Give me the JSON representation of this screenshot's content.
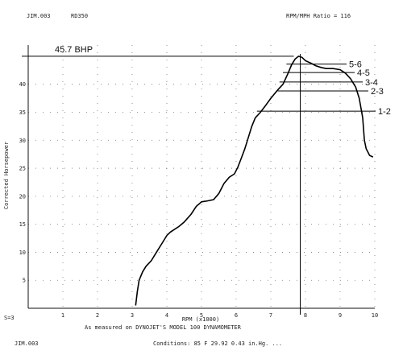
{
  "header": {
    "left_code": "JIM.003",
    "model": "RD350",
    "right_title": "RPM/MPH Ratio = 116"
  },
  "footer": {
    "scale": "S=3",
    "measured": "As measured on DYNOJET'S MODEL 100 DYNAMOMETER",
    "file": "JIM.003",
    "conditions": "Conditions: 85 F  29.92 0.43 in.Hg.  ..."
  },
  "chart_data": {
    "type": "line",
    "xlabel": "RPM (x1000)",
    "ylabel": "Corrected Horsepower",
    "xlim": [
      0,
      10
    ],
    "ylim": [
      0,
      47
    ],
    "x_ticks": [
      1,
      2,
      3,
      4,
      5,
      6,
      7,
      8,
      9,
      10
    ],
    "y_ticks": [
      5,
      10,
      15,
      20,
      25,
      30,
      35,
      40
    ],
    "grid": true,
    "series": [
      {
        "points": [
          [
            3.1,
            0.5
          ],
          [
            3.15,
            3
          ],
          [
            3.2,
            5
          ],
          [
            3.3,
            6.5
          ],
          [
            3.4,
            7.5
          ],
          [
            3.55,
            8.5
          ],
          [
            3.7,
            10
          ],
          [
            3.85,
            11.5
          ],
          [
            4.0,
            13
          ],
          [
            4.1,
            13.6
          ],
          [
            4.2,
            14
          ],
          [
            4.35,
            14.6
          ],
          [
            4.5,
            15.4
          ],
          [
            4.7,
            16.8
          ],
          [
            4.85,
            18.2
          ],
          [
            5.0,
            19
          ],
          [
            5.2,
            19.2
          ],
          [
            5.35,
            19.4
          ],
          [
            5.5,
            20.5
          ],
          [
            5.65,
            22.3
          ],
          [
            5.8,
            23.4
          ],
          [
            5.95,
            24
          ],
          [
            6.05,
            25.2
          ],
          [
            6.15,
            26.8
          ],
          [
            6.25,
            28.5
          ],
          [
            6.35,
            30.5
          ],
          [
            6.45,
            32.5
          ],
          [
            6.55,
            34
          ],
          [
            6.7,
            35
          ],
          [
            6.85,
            36.2
          ],
          [
            7.0,
            37.5
          ],
          [
            7.2,
            39
          ],
          [
            7.35,
            40
          ],
          [
            7.5,
            42
          ],
          [
            7.6,
            43.5
          ],
          [
            7.7,
            44.5
          ],
          [
            7.8,
            45
          ],
          [
            7.9,
            44.8
          ],
          [
            8.0,
            44.2
          ],
          [
            8.15,
            43.8
          ],
          [
            8.3,
            43.3
          ],
          [
            8.45,
            43
          ],
          [
            8.6,
            42.8
          ],
          [
            8.8,
            42.8
          ],
          [
            9.0,
            42.6
          ],
          [
            9.15,
            42
          ],
          [
            9.3,
            41
          ],
          [
            9.45,
            39.5
          ],
          [
            9.55,
            37.5
          ],
          [
            9.65,
            34
          ],
          [
            9.7,
            30
          ],
          [
            9.75,
            28.5
          ],
          [
            9.85,
            27.3
          ],
          [
            9.95,
            27
          ]
        ]
      }
    ],
    "annotations": {
      "peak": {
        "label": "45.7 BHP",
        "value": 45.7
      },
      "peak_rpm_marker": 7.85,
      "gear_lines": [
        {
          "label": "5-6",
          "y": 43.6
        },
        {
          "label": "4-5",
          "y": 42.1
        },
        {
          "label": "3-4",
          "y": 40.4
        },
        {
          "label": "2-3",
          "y": 38.8
        },
        {
          "label": "1-2",
          "y": 35.2
        }
      ]
    }
  }
}
